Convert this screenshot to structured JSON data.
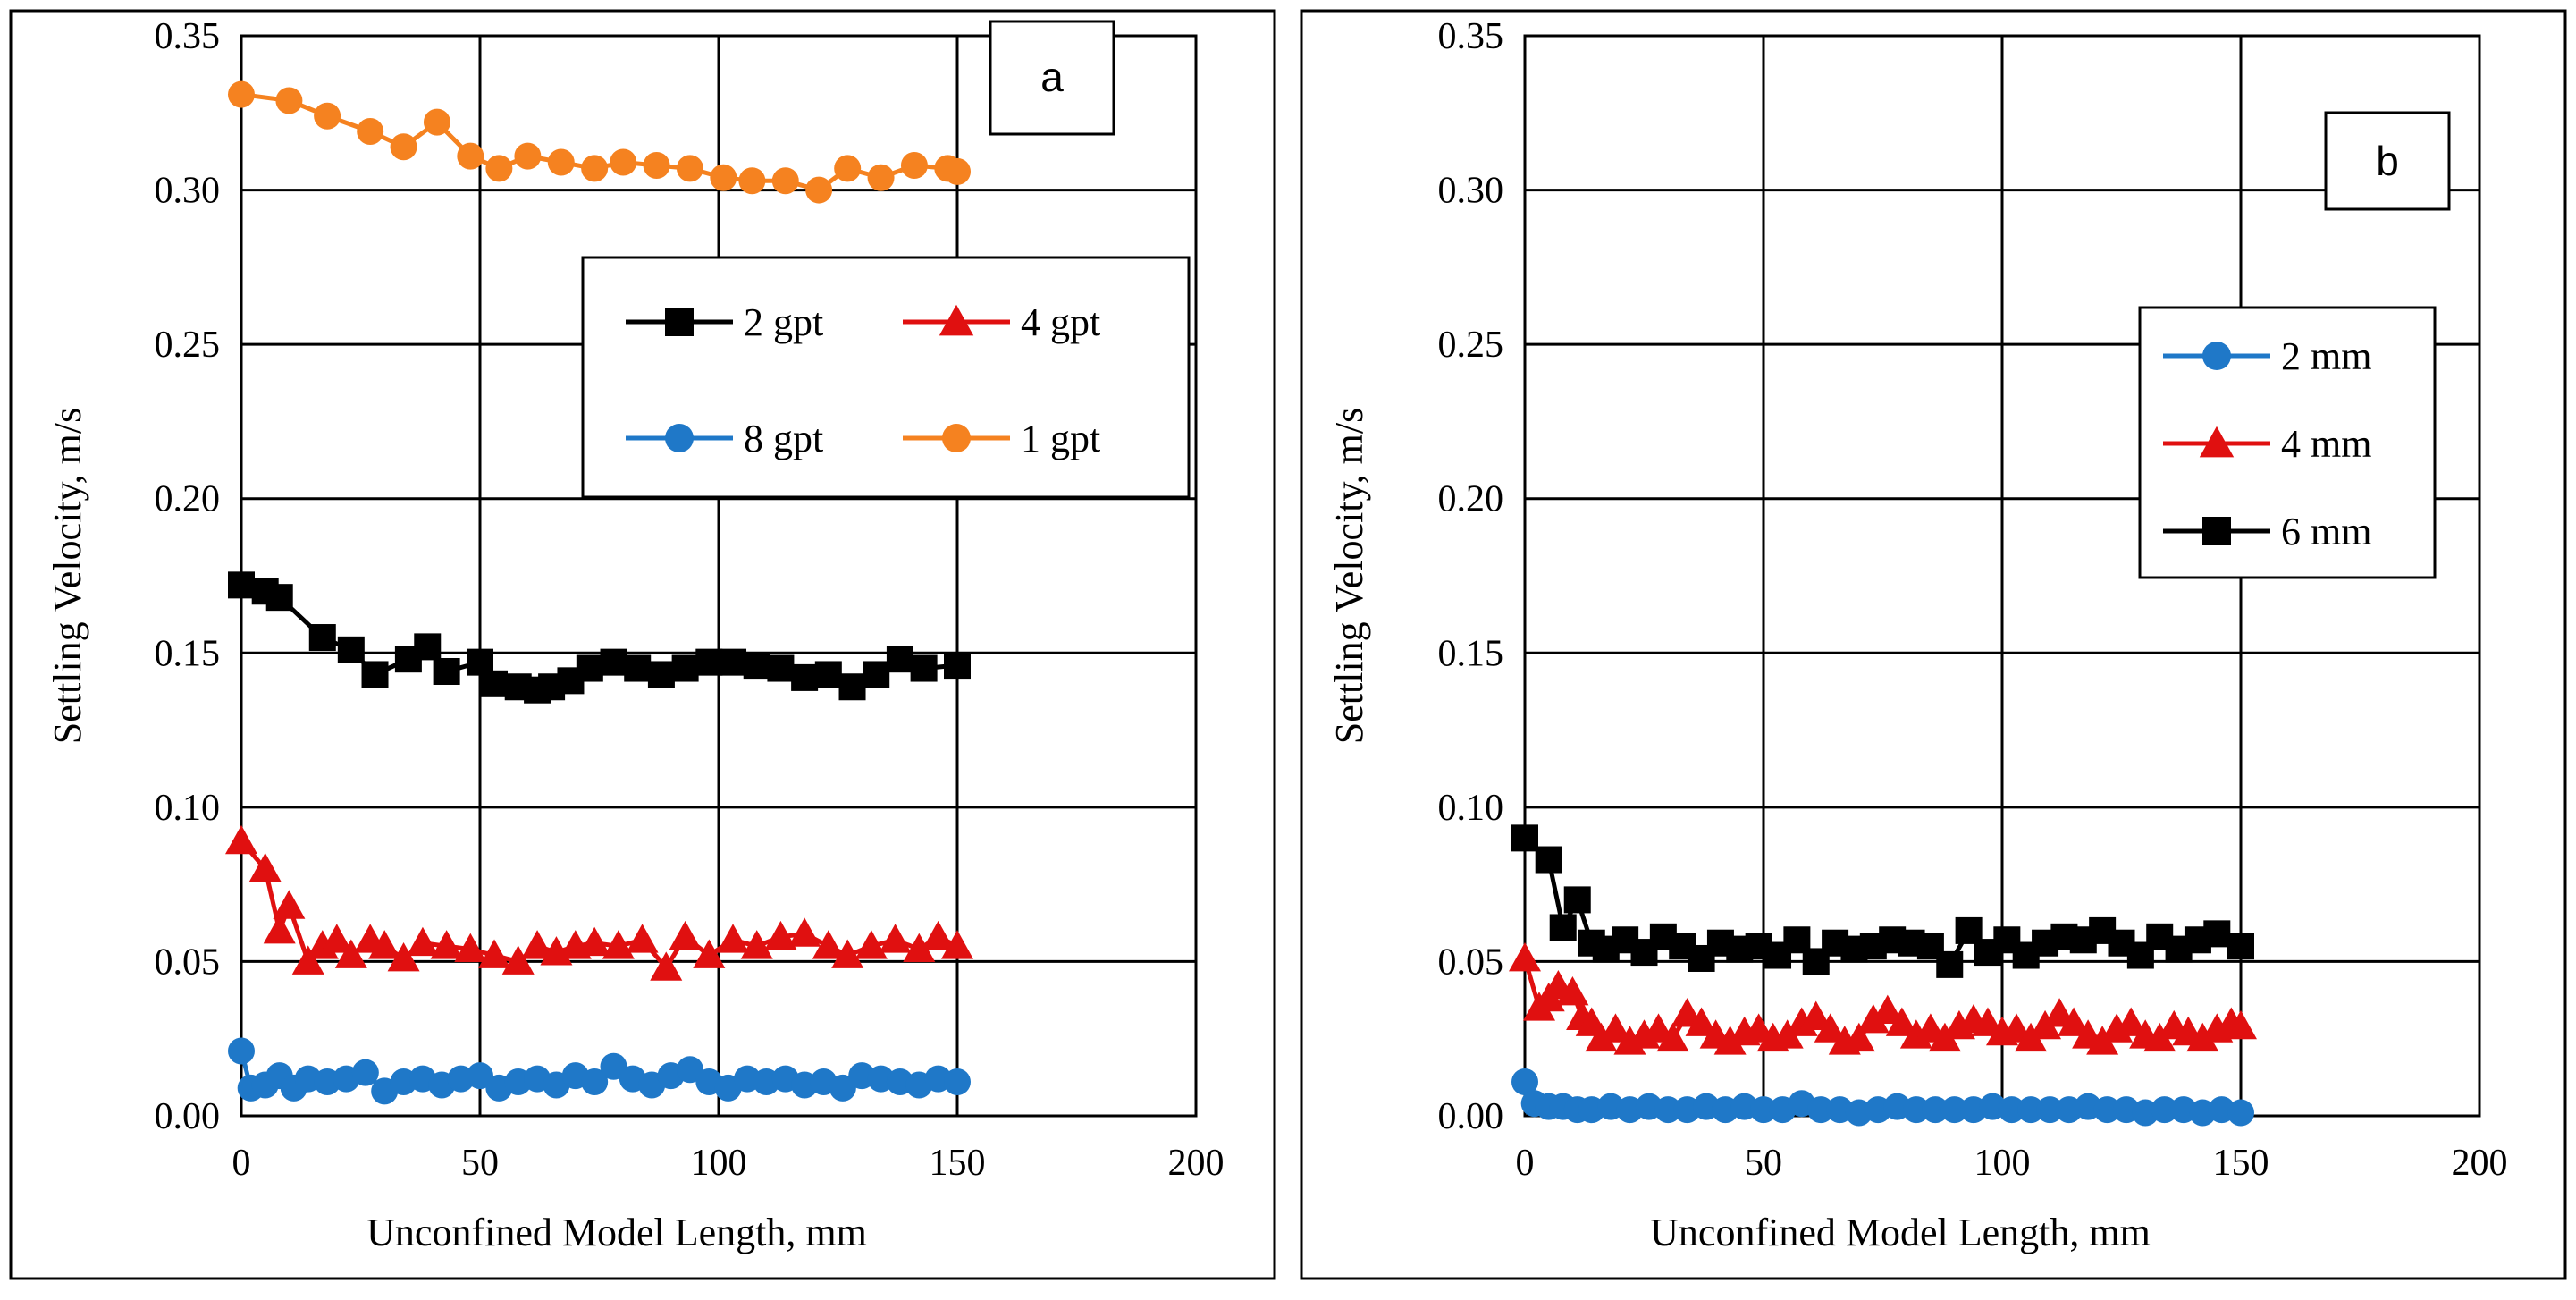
{
  "chart_data": [
    {
      "type": "line",
      "panel_label": "a",
      "xlabel": "Unconfined Model Length, mm",
      "ylabel": "Settling Velocity, m/s",
      "xlim": [
        0,
        200
      ],
      "ylim": [
        0,
        0.35
      ],
      "x_ticks": [
        "0",
        "50",
        "100",
        "150",
        "200"
      ],
      "y_ticks": [
        "0.00",
        "0.05",
        "0.10",
        "0.15",
        "0.20",
        "0.25",
        "0.30",
        "0.35"
      ],
      "grid": true,
      "legend_position": "upper-right",
      "legend_columns": 2,
      "series": [
        {
          "name": "2 gpt",
          "color": "#000000",
          "marker": "square",
          "x": [
            0,
            5,
            8,
            17,
            23,
            28,
            35,
            39,
            43,
            50,
            53,
            58,
            62,
            65,
            69,
            73,
            78,
            83,
            88,
            93,
            98,
            103,
            108,
            113,
            118,
            123,
            128,
            133,
            138,
            143,
            150
          ],
          "y": [
            0.172,
            0.17,
            0.168,
            0.155,
            0.151,
            0.143,
            0.148,
            0.152,
            0.144,
            0.147,
            0.14,
            0.139,
            0.138,
            0.139,
            0.141,
            0.145,
            0.147,
            0.145,
            0.143,
            0.145,
            0.147,
            0.147,
            0.146,
            0.145,
            0.142,
            0.143,
            0.139,
            0.143,
            0.148,
            0.145,
            0.146
          ]
        },
        {
          "name": "4 gpt",
          "color": "#e01010",
          "marker": "triangle",
          "x": [
            0,
            5,
            8,
            10,
            14,
            17,
            20,
            23,
            27,
            30,
            34,
            38,
            43,
            48,
            53,
            58,
            62,
            66,
            70,
            74,
            79,
            84,
            89,
            93,
            98,
            103,
            108,
            113,
            118,
            123,
            127,
            132,
            137,
            142,
            146,
            150
          ],
          "y": [
            0.089,
            0.08,
            0.06,
            0.068,
            0.05,
            0.055,
            0.057,
            0.052,
            0.057,
            0.055,
            0.051,
            0.056,
            0.055,
            0.054,
            0.052,
            0.05,
            0.055,
            0.053,
            0.055,
            0.056,
            0.055,
            0.057,
            0.048,
            0.058,
            0.052,
            0.057,
            0.055,
            0.058,
            0.059,
            0.055,
            0.052,
            0.055,
            0.057,
            0.054,
            0.058,
            0.055
          ]
        },
        {
          "name": "8 gpt",
          "color": "#1f78c8",
          "marker": "circle",
          "x": [
            0,
            2,
            5,
            8,
            11,
            14,
            18,
            22,
            26,
            30,
            34,
            38,
            42,
            46,
            50,
            54,
            58,
            62,
            66,
            70,
            74,
            78,
            82,
            86,
            90,
            94,
            98,
            102,
            106,
            110,
            114,
            118,
            122,
            126,
            130,
            134,
            138,
            142,
            146,
            150
          ],
          "y": [
            0.021,
            0.009,
            0.01,
            0.013,
            0.009,
            0.012,
            0.011,
            0.012,
            0.014,
            0.008,
            0.011,
            0.012,
            0.01,
            0.012,
            0.013,
            0.009,
            0.011,
            0.012,
            0.01,
            0.013,
            0.011,
            0.016,
            0.012,
            0.01,
            0.013,
            0.015,
            0.011,
            0.009,
            0.012,
            0.011,
            0.012,
            0.01,
            0.011,
            0.009,
            0.013,
            0.012,
            0.011,
            0.01,
            0.012,
            0.011
          ]
        },
        {
          "name": "1 gpt",
          "color": "#f58220",
          "marker": "circle",
          "x": [
            0,
            10,
            18,
            27,
            34,
            41,
            48,
            54,
            60,
            67,
            74,
            80,
            87,
            94,
            101,
            107,
            114,
            121,
            127,
            134,
            141,
            148,
            150
          ],
          "y": [
            0.331,
            0.329,
            0.324,
            0.319,
            0.314,
            0.322,
            0.311,
            0.307,
            0.311,
            0.309,
            0.307,
            0.309,
            0.308,
            0.307,
            0.304,
            0.303,
            0.303,
            0.3,
            0.307,
            0.304,
            0.308,
            0.307,
            0.306
          ]
        }
      ]
    },
    {
      "type": "line",
      "panel_label": "b",
      "xlabel": "Unconfined Model Length, mm",
      "ylabel": "Settling Velocity, m/s",
      "xlim": [
        0,
        200
      ],
      "ylim": [
        0,
        0.35
      ],
      "x_ticks": [
        "0",
        "50",
        "100",
        "150",
        "200"
      ],
      "y_ticks": [
        "0.00",
        "0.05",
        "0.10",
        "0.15",
        "0.20",
        "0.25",
        "0.30",
        "0.35"
      ],
      "grid": true,
      "legend_position": "upper-right",
      "legend_columns": 1,
      "series": [
        {
          "name": "2 mm",
          "color": "#1f78c8",
          "marker": "circle",
          "x": [
            0,
            2,
            5,
            8,
            11,
            14,
            18,
            22,
            26,
            30,
            34,
            38,
            42,
            46,
            50,
            54,
            58,
            62,
            66,
            70,
            74,
            78,
            82,
            86,
            90,
            94,
            98,
            102,
            106,
            110,
            114,
            118,
            122,
            126,
            130,
            134,
            138,
            142,
            146,
            150
          ],
          "y": [
            0.011,
            0.004,
            0.003,
            0.003,
            0.002,
            0.002,
            0.003,
            0.002,
            0.003,
            0.002,
            0.002,
            0.003,
            0.002,
            0.003,
            0.002,
            0.002,
            0.004,
            0.002,
            0.002,
            0.001,
            0.002,
            0.003,
            0.002,
            0.002,
            0.002,
            0.002,
            0.003,
            0.002,
            0.002,
            0.002,
            0.002,
            0.003,
            0.002,
            0.002,
            0.001,
            0.002,
            0.002,
            0.001,
            0.002,
            0.001
          ]
        },
        {
          "name": "4 mm",
          "color": "#e01010",
          "marker": "triangle",
          "x": [
            0,
            3,
            5,
            7,
            10,
            12,
            14,
            16,
            19,
            22,
            25,
            28,
            31,
            34,
            37,
            40,
            43,
            46,
            49,
            52,
            55,
            58,
            61,
            64,
            67,
            70,
            73,
            76,
            79,
            82,
            85,
            88,
            91,
            94,
            97,
            100,
            103,
            106,
            109,
            112,
            115,
            118,
            121,
            124,
            127,
            130,
            133,
            136,
            139,
            142,
            145,
            148,
            150
          ],
          "y": [
            0.051,
            0.035,
            0.038,
            0.042,
            0.04,
            0.032,
            0.03,
            0.025,
            0.028,
            0.024,
            0.026,
            0.028,
            0.025,
            0.033,
            0.03,
            0.026,
            0.024,
            0.027,
            0.028,
            0.025,
            0.026,
            0.03,
            0.032,
            0.028,
            0.024,
            0.025,
            0.031,
            0.034,
            0.03,
            0.026,
            0.028,
            0.025,
            0.029,
            0.031,
            0.03,
            0.027,
            0.028,
            0.025,
            0.029,
            0.033,
            0.03,
            0.026,
            0.024,
            0.028,
            0.03,
            0.026,
            0.025,
            0.029,
            0.027,
            0.025,
            0.028,
            0.03,
            0.029
          ]
        },
        {
          "name": "6 mm",
          "color": "#000000",
          "marker": "square",
          "x": [
            0,
            5,
            8,
            11,
            14,
            17,
            21,
            25,
            29,
            33,
            37,
            41,
            45,
            49,
            53,
            57,
            61,
            65,
            69,
            73,
            77,
            81,
            85,
            89,
            93,
            97,
            101,
            105,
            109,
            113,
            117,
            121,
            125,
            129,
            133,
            137,
            141,
            145,
            150
          ],
          "y": [
            0.09,
            0.083,
            0.061,
            0.07,
            0.056,
            0.054,
            0.057,
            0.053,
            0.058,
            0.055,
            0.051,
            0.056,
            0.054,
            0.055,
            0.052,
            0.057,
            0.05,
            0.056,
            0.054,
            0.055,
            0.057,
            0.056,
            0.055,
            0.049,
            0.06,
            0.053,
            0.057,
            0.052,
            0.056,
            0.058,
            0.057,
            0.06,
            0.056,
            0.052,
            0.058,
            0.054,
            0.057,
            0.059,
            0.055
          ]
        }
      ]
    }
  ]
}
